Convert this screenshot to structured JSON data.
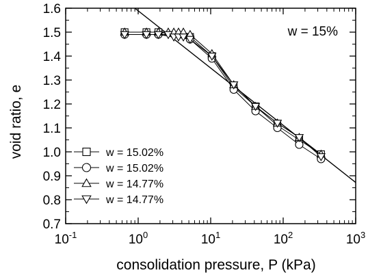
{
  "chart_data": {
    "type": "scatter",
    "title": "",
    "annotation": "w = 15%",
    "xlabel": "consolidation pressure, P (kPa)",
    "ylabel": "void ratio, e",
    "xscale": "log",
    "xlim": [
      0.1,
      1000
    ],
    "ylim": [
      0.7,
      1.6
    ],
    "x_ticks": [
      {
        "base": "10",
        "exp": "-1"
      },
      {
        "base": "10",
        "exp": "0"
      },
      {
        "base": "10",
        "exp": "1"
      },
      {
        "base": "10",
        "exp": "2"
      },
      {
        "base": "10",
        "exp": "3"
      }
    ],
    "y_ticks": [
      "0.7",
      "0.8",
      "0.9",
      "1.0",
      "1.1",
      "1.2",
      "1.3",
      "1.4",
      "1.5",
      "1.6"
    ],
    "grid": false,
    "legend_position": "lower-left",
    "series": [
      {
        "name": "w = 15.02%",
        "marker": "square",
        "x": [
          0.65,
          1.3,
          1.9,
          5.2,
          10.4,
          20.8,
          41.6,
          83.2,
          166.4,
          332.8
        ],
        "y": [
          1.5,
          1.5,
          1.5,
          1.48,
          1.4,
          1.27,
          1.19,
          1.11,
          1.05,
          0.99
        ]
      },
      {
        "name": "w = 15.02%",
        "marker": "circle",
        "x": [
          0.65,
          1.3,
          1.9,
          5.2,
          10.4,
          20.8,
          41.6,
          83.2,
          166.4,
          332.8
        ],
        "y": [
          1.49,
          1.49,
          1.49,
          1.47,
          1.39,
          1.26,
          1.17,
          1.1,
          1.03,
          0.97
        ]
      },
      {
        "name": "w = 14.77%",
        "marker": "triangle-up",
        "x": [
          0.65,
          1.3,
          1.9,
          2.6,
          3.1,
          3.6,
          4.2,
          5.2,
          10.4,
          20.8,
          41.6,
          83.2,
          166.4,
          332.8
        ],
        "y": [
          1.5,
          1.5,
          1.5,
          1.5,
          1.5,
          1.5,
          1.5,
          1.49,
          1.41,
          1.28,
          1.19,
          1.12,
          1.06,
          0.99
        ]
      },
      {
        "name": "w = 14.77%",
        "marker": "triangle-down",
        "x": [
          0.65,
          1.3,
          1.9,
          2.6,
          3.1,
          3.6,
          4.2,
          5.2,
          10.4,
          20.8,
          41.6,
          83.2,
          166.4,
          332.8
        ],
        "y": [
          1.49,
          1.49,
          1.49,
          1.49,
          1.48,
          1.48,
          1.48,
          1.47,
          1.4,
          1.28,
          1.19,
          1.12,
          1.06,
          0.98
        ]
      }
    ],
    "reference_line": {
      "x": [
        0.9,
        1000
      ],
      "y": [
        1.6,
        0.872
      ]
    }
  }
}
